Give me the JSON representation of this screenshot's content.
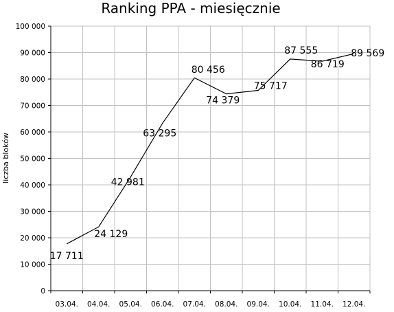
{
  "chart_data": {
    "type": "line",
    "title": "Ranking PPA - miesięcznie",
    "xlabel": "",
    "ylabel": "liczba bloków",
    "categories": [
      "03.04.",
      "04.04.",
      "05.04.",
      "06.04.",
      "07.04.",
      "08.04.",
      "09.04.",
      "10.04.",
      "11.04.",
      "12.04."
    ],
    "values": [
      17711,
      24129,
      42981,
      63295,
      80456,
      74379,
      75717,
      87555,
      86719,
      89569
    ],
    "data_labels": [
      "17 711",
      "24 129",
      "42 981",
      "63 295",
      "80 456",
      "74 379",
      "75 717",
      "87 555",
      "86 719",
      "89 569"
    ],
    "ylim": [
      0,
      100000
    ],
    "yticks": [
      "0",
      "10 000",
      "20 000",
      "30 000",
      "40 000",
      "50 000",
      "60 000",
      "70 000",
      "80 000",
      "90 000",
      "100 000"
    ],
    "grid": true,
    "legend": "none",
    "colors": {
      "line": "#000000",
      "grid": "#c0c0c0"
    }
  }
}
